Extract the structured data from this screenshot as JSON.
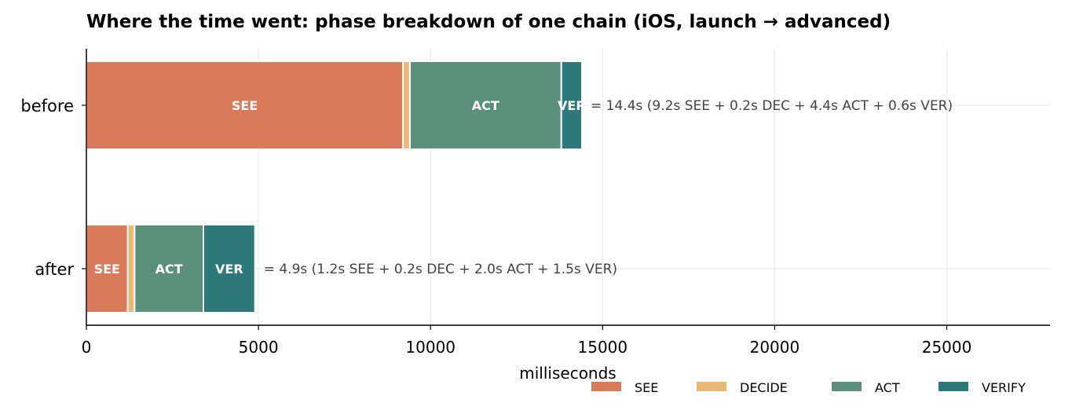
{
  "chart_data": {
    "type": "bar",
    "orientation": "horizontal",
    "stacked": true,
    "title": "Where the time went: phase breakdown of one chain (iOS, launch → advanced)",
    "xlabel": "milliseconds",
    "ylabel": "",
    "xlim": [
      0,
      28000
    ],
    "xticks": [
      0,
      5000,
      10000,
      15000,
      20000,
      25000
    ],
    "grid": true,
    "legend_position": "bottom-right",
    "categories": [
      "before",
      "after"
    ],
    "series": [
      {
        "name": "SEE",
        "color": "#db7a5a",
        "values": [
          9200,
          1200
        ],
        "labels": [
          "SEE",
          "SEE"
        ]
      },
      {
        "name": "DECIDE",
        "color": "#e8b874",
        "values": [
          200,
          200
        ],
        "labels": [
          "",
          ""
        ]
      },
      {
        "name": "ACT",
        "color": "#5a8f7c",
        "values": [
          4400,
          2000
        ],
        "labels": [
          "ACT",
          "ACT"
        ]
      },
      {
        "name": "VERIFY",
        "color": "#2e7a7a",
        "values": [
          600,
          1500
        ],
        "labels": [
          "VER",
          "VER"
        ]
      }
    ],
    "annotations": [
      "= 14.4s    (9.2s SEE  +  0.2s DEC  +  4.4s ACT  +  0.6s VER)",
      "= 4.9s    (1.2s SEE  +  0.2s DEC  +  2.0s ACT  +  1.5s VER)"
    ]
  }
}
